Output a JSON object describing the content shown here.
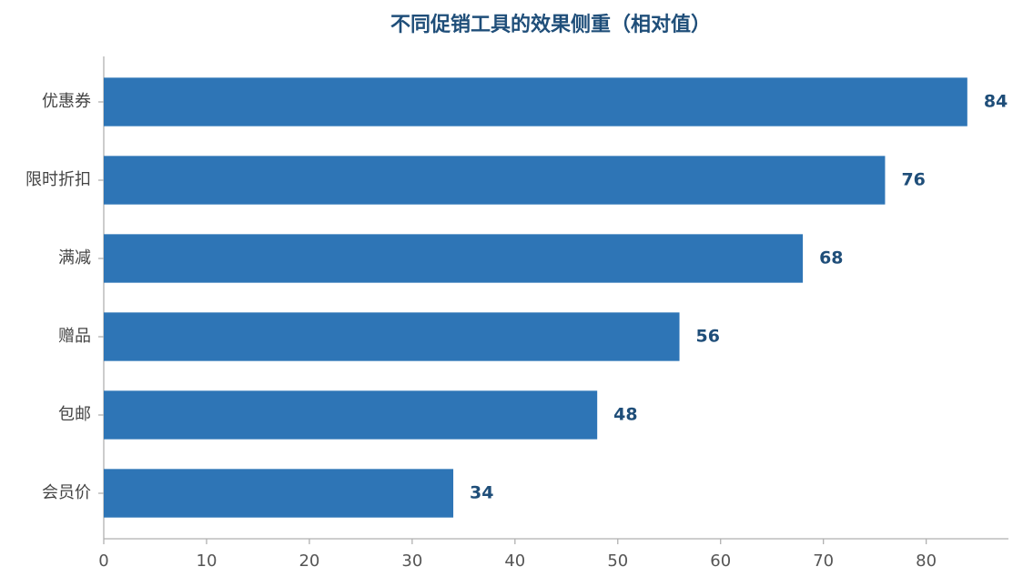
{
  "chart_data": {
    "type": "bar",
    "orientation": "horizontal",
    "title": "不同促销工具的效果侧重（相对值）",
    "categories": [
      "优惠券",
      "限时折扣",
      "满减",
      "赠品",
      "包邮",
      "会员价"
    ],
    "values": [
      84,
      76,
      68,
      56,
      48,
      34
    ],
    "color": "#2e75b6",
    "xlim": [
      0,
      88
    ],
    "xticks": [
      0,
      10,
      20,
      30,
      40,
      50,
      60,
      70,
      80
    ]
  }
}
